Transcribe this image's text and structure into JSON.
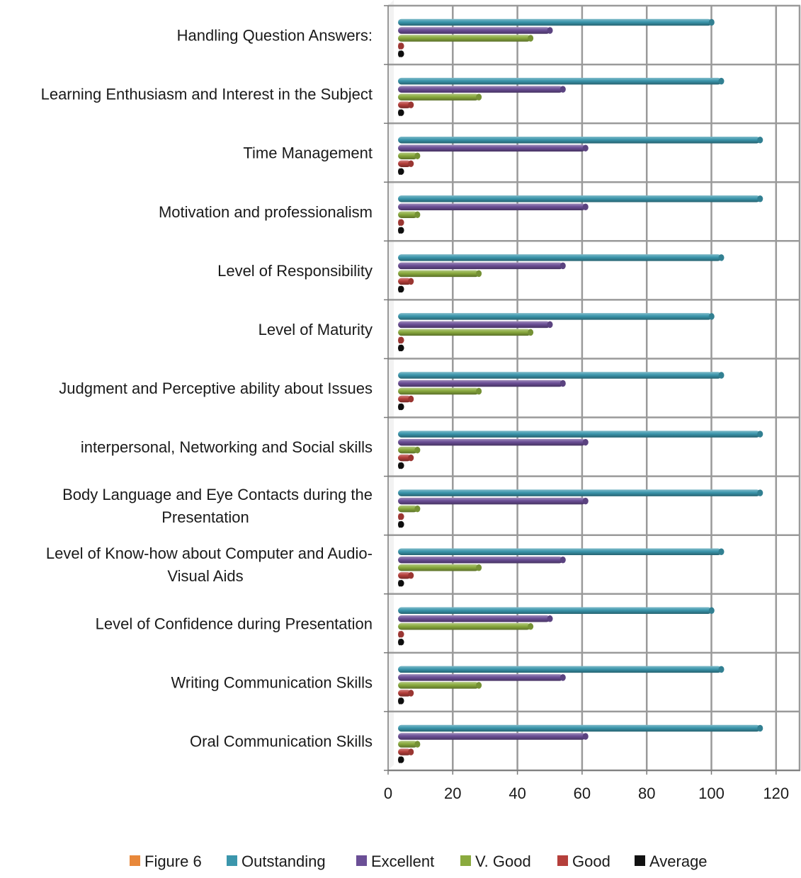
{
  "chart_data": {
    "type": "bar",
    "orientation": "horizontal",
    "title": "",
    "xlabel": "",
    "ylabel": "",
    "xlim": [
      0,
      120
    ],
    "x_ticks": [
      0,
      20,
      40,
      60,
      80,
      100,
      120
    ],
    "grid": true,
    "legend_position": "bottom",
    "categories": [
      [
        "Handling Question Answers:"
      ],
      [
        "Learning Enthusiasm and Interest in the Subject"
      ],
      [
        "Time Management"
      ],
      [
        "Motivation and professionalism"
      ],
      [
        "Level of Responsibility"
      ],
      [
        "Level of Maturity"
      ],
      [
        "Judgment and Perceptive ability about Issues"
      ],
      [
        "interpersonal, Networking and Social skills"
      ],
      [
        "Body Language and Eye Contacts during the",
        "Presentation"
      ],
      [
        "Level of Know-how about Computer and Audio-",
        "Visual Aids"
      ],
      [
        "Level of Confidence during Presentation"
      ],
      [
        "Writing Communication Skills"
      ],
      [
        "Oral Communication Skills"
      ]
    ],
    "series": [
      {
        "name": "Figure 6",
        "color": "#e8883a",
        "values": [
          0,
          0,
          0,
          0,
          0,
          0,
          0,
          0,
          0,
          0,
          0,
          0,
          0
        ]
      },
      {
        "name": "Outstanding",
        "color": "#3b96ac",
        "values": [
          97,
          100,
          112,
          112,
          100,
          97,
          100,
          112,
          112,
          100,
          97,
          100,
          112
        ]
      },
      {
        "name": "Excellent",
        "color": "#6b4f96",
        "values": [
          47,
          51,
          58,
          58,
          51,
          47,
          51,
          58,
          58,
          51,
          47,
          51,
          58
        ]
      },
      {
        "name": "V. Good",
        "color": "#8aaa3e",
        "values": [
          41,
          25,
          6,
          6,
          25,
          41,
          25,
          6,
          6,
          25,
          41,
          25,
          6
        ]
      },
      {
        "name": "Good",
        "color": "#b53f3b",
        "values": [
          1,
          4,
          4,
          1,
          4,
          1,
          4,
          4,
          1,
          4,
          1,
          4,
          4
        ]
      },
      {
        "name": "Average",
        "color": "#111111",
        "values": [
          1,
          1,
          1,
          1,
          1,
          1,
          1,
          1,
          1,
          1,
          1,
          1,
          1
        ]
      }
    ]
  }
}
